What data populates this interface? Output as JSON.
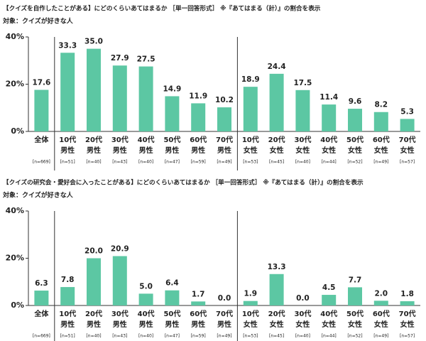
{
  "chart_data": [
    {
      "type": "bar",
      "title": "【クイズを自作したことがある】にどのくらいあてはまるか ［単一回答形式］ ※『あてはまる（計）』の割合を表示",
      "subtitle": "対象：クイズが好きな人",
      "categories": [
        [
          "全体"
        ],
        [
          "10代",
          "男性"
        ],
        [
          "20代",
          "男性"
        ],
        [
          "30代",
          "男性"
        ],
        [
          "40代",
          "男性"
        ],
        [
          "50代",
          "男性"
        ],
        [
          "60代",
          "男性"
        ],
        [
          "70代",
          "男性"
        ],
        [
          "10代",
          "女性"
        ],
        [
          "20代",
          "女性"
        ],
        [
          "30代",
          "女性"
        ],
        [
          "40代",
          "女性"
        ],
        [
          "50代",
          "女性"
        ],
        [
          "60代",
          "女性"
        ],
        [
          "70代",
          "女性"
        ]
      ],
      "sample_sizes": [
        "[n=669]",
        "[n=51]",
        "[n=40]",
        "[n=43]",
        "[n=40]",
        "[n=47]",
        "[n=59]",
        "[n=49]",
        "[n=53]",
        "[n=45]",
        "[n=40]",
        "[n=44]",
        "[n=52]",
        "[n=49]",
        "[n=57]"
      ],
      "values": [
        17.6,
        33.3,
        35.0,
        27.9,
        27.5,
        14.9,
        11.9,
        10.2,
        18.9,
        24.4,
        17.5,
        11.4,
        9.6,
        8.2,
        5.3
      ],
      "value_labels": [
        "17.6",
        "33.3",
        "35.0",
        "27.9",
        "27.5",
        "14.9",
        "11.9",
        "10.2",
        "18.9",
        "24.4",
        "17.5",
        "11.4",
        "9.6",
        "8.2",
        "5.3"
      ],
      "color": "#5cc7a3",
      "ylim": [
        0,
        40
      ],
      "yticks": [
        {
          "value": 0,
          "label": "0%"
        },
        {
          "value": 20,
          "label": "20%"
        },
        {
          "value": 40,
          "label": "40%"
        }
      ]
    },
    {
      "type": "bar",
      "title": "【クイズの研究会・愛好会に入ったことがある】にどのくらいあてはまるか ［単一回答形式］ ※『あてはまる（計）』の割合を表示",
      "subtitle": "対象：クイズが好きな人",
      "categories": [
        [
          "全体"
        ],
        [
          "10代",
          "男性"
        ],
        [
          "20代",
          "男性"
        ],
        [
          "30代",
          "男性"
        ],
        [
          "40代",
          "男性"
        ],
        [
          "50代",
          "男性"
        ],
        [
          "60代",
          "男性"
        ],
        [
          "70代",
          "男性"
        ],
        [
          "10代",
          "女性"
        ],
        [
          "20代",
          "女性"
        ],
        [
          "30代",
          "女性"
        ],
        [
          "40代",
          "女性"
        ],
        [
          "50代",
          "女性"
        ],
        [
          "60代",
          "女性"
        ],
        [
          "70代",
          "女性"
        ]
      ],
      "sample_sizes": [
        "[n=669]",
        "[n=51]",
        "[n=40]",
        "[n=43]",
        "[n=40]",
        "[n=47]",
        "[n=59]",
        "[n=49]",
        "[n=53]",
        "[n=45]",
        "[n=40]",
        "[n=44]",
        "[n=52]",
        "[n=49]",
        "[n=57]"
      ],
      "values": [
        6.3,
        7.8,
        20.0,
        20.9,
        5.0,
        6.4,
        1.7,
        0.0,
        1.9,
        13.3,
        0.0,
        4.5,
        7.7,
        2.0,
        1.8
      ],
      "value_labels": [
        "6.3",
        "7.8",
        "20.0",
        "20.9",
        "5.0",
        "6.4",
        "1.7",
        "0.0",
        "1.9",
        "13.3",
        "0.0",
        "4.5",
        "7.7",
        "2.0",
        "1.8"
      ],
      "color": "#5cc7a3",
      "ylim": [
        0,
        40
      ],
      "yticks": [
        {
          "value": 0,
          "label": "0%"
        },
        {
          "value": 20,
          "label": "20%"
        },
        {
          "value": 40,
          "label": "40%"
        }
      ]
    }
  ]
}
